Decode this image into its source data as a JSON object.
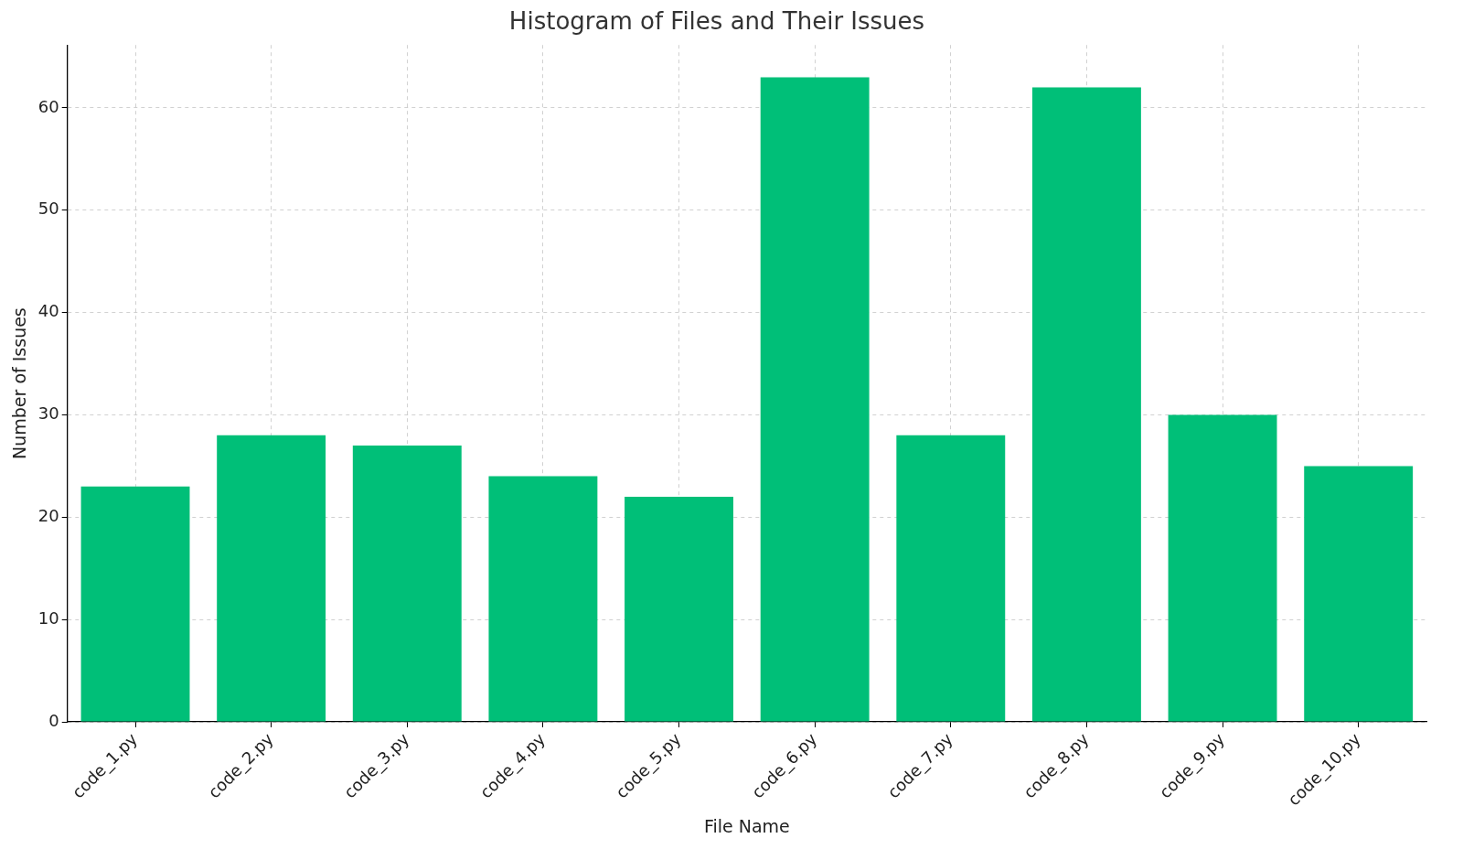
{
  "chart_data": {
    "type": "bar",
    "title": "Histogram of Files and Their Issues",
    "x_label": "File Name",
    "y_label": "Number of Issues",
    "categories": [
      "code_1.py",
      "code_2.py",
      "code_3.py",
      "code_4.py",
      "code_5.py",
      "code_6.py",
      "code_7.py",
      "code_8.py",
      "code_9.py",
      "code_10.py"
    ],
    "values": [
      23,
      28,
      27,
      24,
      22,
      63,
      28,
      62,
      30,
      25
    ],
    "color": "#00bf78",
    "ylim": [
      0,
      66.15
    ],
    "yticks": [
      0,
      10,
      20,
      30,
      40,
      50,
      60
    ],
    "grid": true
  }
}
